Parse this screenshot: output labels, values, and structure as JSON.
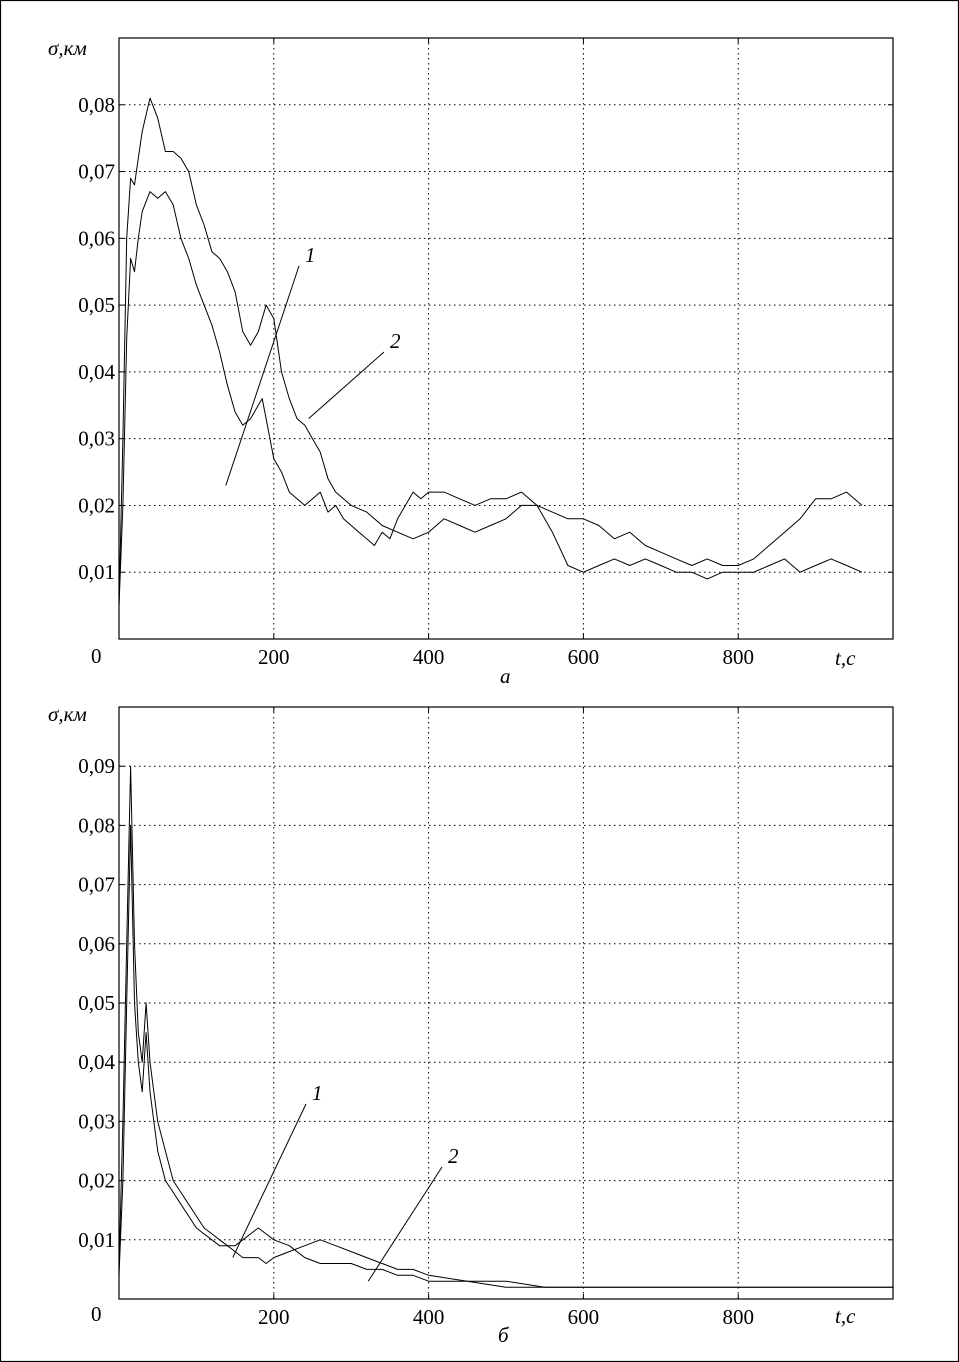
{
  "chart_data": [
    {
      "type": "line",
      "panel_label": "а",
      "ylabel": "σ,км",
      "xlabel": "t,с",
      "xlim": [
        0,
        1000
      ],
      "ylim": [
        0,
        0.09
      ],
      "xticks": [
        200,
        400,
        600,
        800
      ],
      "xtick_labels": [
        "200",
        "400",
        "600",
        "800"
      ],
      "yticks": [
        0.01,
        0.02,
        0.03,
        0.04,
        0.05,
        0.06,
        0.07,
        0.08
      ],
      "ytick_labels": [
        "0,01",
        "0,02",
        "0,03",
        "0,04",
        "0,05",
        "0,06",
        "0,07",
        "0,08"
      ],
      "origin_label": "0",
      "grid": true,
      "series": [
        {
          "name": "1",
          "x": [
            0,
            5,
            10,
            15,
            20,
            25,
            30,
            40,
            50,
            60,
            70,
            80,
            90,
            100,
            110,
            120,
            130,
            140,
            150,
            160,
            170,
            180,
            185,
            190,
            200,
            210,
            220,
            230,
            240,
            250,
            260,
            270,
            280,
            290,
            300,
            310,
            320,
            330,
            340,
            350,
            360,
            370,
            380,
            390,
            400,
            420,
            440,
            460,
            480,
            500,
            520,
            540,
            560,
            580,
            600,
            620,
            640,
            660,
            680,
            700,
            720,
            740,
            760,
            780,
            800,
            820,
            840,
            860,
            880,
            900,
            920,
            940,
            960
          ],
          "y": [
            0.005,
            0.02,
            0.045,
            0.057,
            0.055,
            0.06,
            0.064,
            0.067,
            0.066,
            0.067,
            0.065,
            0.06,
            0.057,
            0.053,
            0.05,
            0.047,
            0.043,
            0.038,
            0.034,
            0.032,
            0.033,
            0.035,
            0.036,
            0.033,
            0.027,
            0.025,
            0.022,
            0.021,
            0.02,
            0.021,
            0.022,
            0.019,
            0.02,
            0.018,
            0.017,
            0.016,
            0.015,
            0.014,
            0.016,
            0.015,
            0.018,
            0.02,
            0.022,
            0.021,
            0.022,
            0.022,
            0.021,
            0.02,
            0.021,
            0.021,
            0.022,
            0.02,
            0.019,
            0.018,
            0.018,
            0.017,
            0.015,
            0.016,
            0.014,
            0.013,
            0.012,
            0.011,
            0.012,
            0.011,
            0.011,
            0.012,
            0.014,
            0.016,
            0.018,
            0.021,
            0.021,
            0.022,
            0.02
          ]
        },
        {
          "name": "2",
          "x": [
            0,
            5,
            10,
            15,
            20,
            25,
            30,
            40,
            50,
            60,
            70,
            80,
            90,
            100,
            110,
            120,
            130,
            140,
            150,
            160,
            170,
            180,
            190,
            200,
            210,
            220,
            230,
            240,
            250,
            260,
            270,
            280,
            290,
            300,
            320,
            340,
            360,
            380,
            400,
            420,
            440,
            460,
            480,
            500,
            520,
            540,
            560,
            580,
            600,
            620,
            640,
            660,
            680,
            700,
            720,
            740,
            760,
            780,
            800,
            820,
            840,
            860,
            880,
            900,
            920,
            940,
            960
          ],
          "y": [
            0.005,
            0.03,
            0.06,
            0.069,
            0.068,
            0.072,
            0.076,
            0.081,
            0.078,
            0.073,
            0.073,
            0.072,
            0.07,
            0.065,
            0.062,
            0.058,
            0.057,
            0.055,
            0.052,
            0.046,
            0.044,
            0.046,
            0.05,
            0.048,
            0.04,
            0.036,
            0.033,
            0.032,
            0.03,
            0.028,
            0.024,
            0.022,
            0.021,
            0.02,
            0.019,
            0.017,
            0.016,
            0.015,
            0.016,
            0.018,
            0.017,
            0.016,
            0.017,
            0.018,
            0.02,
            0.02,
            0.016,
            0.011,
            0.01,
            0.011,
            0.012,
            0.011,
            0.012,
            0.011,
            0.01,
            0.01,
            0.009,
            0.01,
            0.01,
            0.01,
            0.011,
            0.012,
            0.01,
            0.011,
            0.012,
            0.011,
            0.01
          ]
        }
      ]
    },
    {
      "type": "line",
      "panel_label": "б",
      "ylabel": "σ,км",
      "xlabel": "t,с",
      "xlim": [
        0,
        1000
      ],
      "ylim": [
        0,
        0.1
      ],
      "xticks": [
        200,
        400,
        600,
        800
      ],
      "xtick_labels": [
        "200",
        "400",
        "600",
        "800"
      ],
      "yticks": [
        0.01,
        0.02,
        0.03,
        0.04,
        0.05,
        0.06,
        0.07,
        0.08,
        0.09
      ],
      "ytick_labels": [
        "0,01",
        "0,02",
        "0,03",
        "0,04",
        "0,05",
        "0,06",
        "0,07",
        "0,08",
        "0,09"
      ],
      "origin_label": "0",
      "grid": true,
      "series": [
        {
          "name": "1",
          "x": [
            0,
            5,
            10,
            15,
            20,
            25,
            30,
            35,
            40,
            50,
            60,
            70,
            80,
            90,
            100,
            110,
            120,
            130,
            140,
            150,
            160,
            170,
            180,
            190,
            200,
            220,
            240,
            260,
            280,
            300,
            320,
            340,
            360,
            380,
            400,
            450,
            500,
            550,
            600,
            650,
            700,
            750,
            800,
            850,
            900,
            950,
            1000
          ],
          "y": [
            0.005,
            0.03,
            0.06,
            0.09,
            0.06,
            0.045,
            0.04,
            0.05,
            0.04,
            0.03,
            0.025,
            0.02,
            0.018,
            0.016,
            0.014,
            0.012,
            0.011,
            0.01,
            0.009,
            0.008,
            0.007,
            0.007,
            0.007,
            0.006,
            0.007,
            0.008,
            0.009,
            0.01,
            0.009,
            0.008,
            0.007,
            0.006,
            0.005,
            0.005,
            0.004,
            0.003,
            0.003,
            0.002,
            0.002,
            0.002,
            0.002,
            0.002,
            0.002,
            0.002,
            0.002,
            0.002,
            0.002
          ]
        },
        {
          "name": "2",
          "x": [
            0,
            5,
            10,
            15,
            20,
            25,
            30,
            35,
            40,
            50,
            60,
            70,
            80,
            90,
            100,
            110,
            120,
            130,
            140,
            150,
            160,
            170,
            180,
            190,
            200,
            220,
            240,
            260,
            280,
            300,
            320,
            340,
            360,
            380,
            400,
            450,
            500,
            550,
            600,
            650,
            700,
            750,
            800,
            850,
            900,
            950,
            1000
          ],
          "y": [
            0.004,
            0.02,
            0.05,
            0.08,
            0.05,
            0.04,
            0.035,
            0.045,
            0.035,
            0.025,
            0.02,
            0.018,
            0.016,
            0.014,
            0.012,
            0.011,
            0.01,
            0.009,
            0.009,
            0.009,
            0.01,
            0.011,
            0.012,
            0.011,
            0.01,
            0.009,
            0.007,
            0.006,
            0.006,
            0.006,
            0.005,
            0.005,
            0.004,
            0.004,
            0.003,
            0.003,
            0.002,
            0.002,
            0.002,
            0.002,
            0.002,
            0.002,
            0.002,
            0.002,
            0.002,
            0.002,
            0.002
          ]
        }
      ]
    }
  ]
}
